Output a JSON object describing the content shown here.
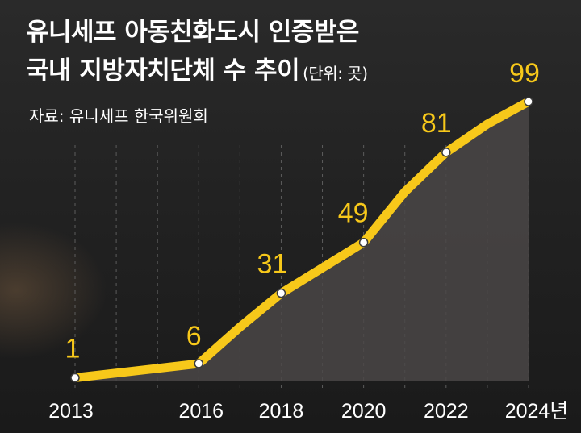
{
  "title_line1": "유니세프 아동친화도시 인증받은",
  "title_line2": "국내 지방자치단체 수 추이",
  "unit": "(단위: 곳)",
  "source": "자료: 유니세프 한국위원회",
  "colors": {
    "line": "#f7c81a",
    "area": "#4a4746",
    "grid": "#5c5c5c",
    "text": "#ffffff"
  },
  "chart_data": {
    "type": "area",
    "x_tick_labels": [
      "2013",
      "2016",
      "2018",
      "2020",
      "2022",
      "2024년"
    ],
    "points": [
      {
        "x": 2013,
        "y": 1,
        "label": "1"
      },
      {
        "x": 2016,
        "y": 6,
        "label": "6"
      },
      {
        "x": 2018,
        "y": 31,
        "label": "31"
      },
      {
        "x": 2020,
        "y": 49,
        "label": "49"
      },
      {
        "x": 2022,
        "y": 81,
        "label": "81"
      },
      {
        "x": 2024,
        "y": 99,
        "label": "99"
      }
    ],
    "line_path": [
      {
        "x": 2013,
        "y": 1
      },
      {
        "x": 2016,
        "y": 6
      },
      {
        "x": 2017,
        "y": 19
      },
      {
        "x": 2018,
        "y": 31
      },
      {
        "x": 2019,
        "y": 40
      },
      {
        "x": 2020,
        "y": 49
      },
      {
        "x": 2021,
        "y": 67
      },
      {
        "x": 2022,
        "y": 81
      },
      {
        "x": 2023,
        "y": 91
      },
      {
        "x": 2024,
        "y": 99
      }
    ],
    "grid": true,
    "xlabel": "",
    "ylabel": ""
  }
}
